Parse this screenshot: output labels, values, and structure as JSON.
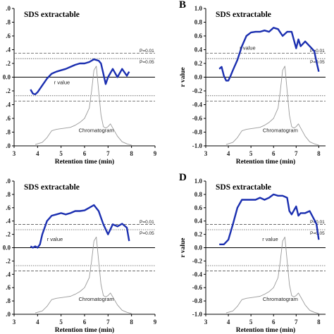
{
  "chart_data": [
    {
      "type": "line",
      "panel_label": "",
      "title": "SDS extractable",
      "xlabel": "Retention time (min)",
      "ylabel": "",
      "xlim": [
        3,
        9
      ],
      "ylim": [
        -1.0,
        1.0
      ],
      "xticks": [
        "3",
        "4",
        "5",
        "6",
        "7",
        "8",
        "9"
      ],
      "yticks": [
        ".0",
        ".8",
        ".6",
        ".4",
        ".2",
        "0.0",
        ".2",
        ".4",
        ".6",
        ".8",
        ".0"
      ],
      "ytick_values": [
        1.0,
        0.8,
        0.6,
        0.4,
        0.2,
        0.0,
        -0.2,
        -0.4,
        -0.6,
        -0.8,
        -1.0
      ],
      "thresholds": [
        {
          "label": "P=0.01",
          "value": 0.35
        },
        {
          "label": "P=0.05",
          "value": 0.27
        }
      ],
      "annotations": {
        "r_value": "r value",
        "chromatogram": "Chromatogram"
      },
      "r_label_pos": [
        4.7,
        -0.1
      ],
      "chrom_label_pos": [
        6.5,
        -0.8
      ],
      "series": [
        {
          "name": "r value",
          "color": "#1b2fb0",
          "x": [
            3.7,
            3.8,
            3.9,
            4.0,
            4.2,
            4.4,
            4.6,
            4.8,
            5.0,
            5.2,
            5.4,
            5.6,
            5.8,
            6.0,
            6.2,
            6.4,
            6.6,
            6.7,
            6.8,
            6.9,
            7.0,
            7.2,
            7.4,
            7.6,
            7.8,
            7.9
          ],
          "y": [
            -0.18,
            -0.24,
            -0.25,
            -0.22,
            -0.12,
            -0.02,
            0.05,
            0.08,
            0.1,
            0.12,
            0.15,
            0.18,
            0.2,
            0.2,
            0.22,
            0.26,
            0.24,
            0.2,
            0.05,
            -0.1,
            0.0,
            0.12,
            0.0,
            0.12,
            0.02,
            0.08
          ]
        },
        {
          "name": "Chromatogram",
          "color": "#999999",
          "x": [
            3.9,
            4.0,
            4.2,
            4.4,
            4.6,
            4.8,
            5.0,
            5.2,
            5.4,
            5.6,
            5.8,
            6.0,
            6.2,
            6.3,
            6.4,
            6.5,
            6.6,
            6.7,
            6.8,
            6.9,
            7.0,
            7.1,
            7.2,
            7.4,
            7.6,
            7.8,
            8.0
          ],
          "y": [
            -0.98,
            -0.97,
            -0.95,
            -0.88,
            -0.78,
            -0.76,
            -0.75,
            -0.74,
            -0.73,
            -0.7,
            -0.66,
            -0.6,
            -0.45,
            -0.2,
            0.1,
            0.16,
            -0.2,
            -0.55,
            -0.72,
            -0.74,
            -0.72,
            -0.68,
            -0.74,
            -0.86,
            -0.94,
            -0.97,
            -0.99
          ]
        }
      ]
    },
    {
      "type": "line",
      "panel_label": "B",
      "title": "SDS extractable",
      "xlabel": "Retention time (min)",
      "ylabel": "r value",
      "xlim": [
        3,
        8.3
      ],
      "ylim": [
        -1.0,
        1.0
      ],
      "xticks": [
        "3",
        "4",
        "5",
        "6",
        "7",
        "8"
      ],
      "yticks": [
        "1.0",
        "0.8",
        "0.6",
        "0.4",
        "0.2",
        "0.0",
        "-0.2",
        "-0.4",
        "-0.6",
        "-0.8",
        "-1.0"
      ],
      "ytick_values": [
        1.0,
        0.8,
        0.6,
        0.4,
        0.2,
        0.0,
        -0.2,
        -0.4,
        -0.6,
        -0.8,
        -1.0
      ],
      "thresholds": [
        {
          "label": "P=0.01",
          "value": 0.35
        },
        {
          "label": "P=0.05",
          "value": 0.27
        }
      ],
      "annotations": {
        "r_value": "r value",
        "chromatogram": "Chromatogram"
      },
      "r_label_pos": [
        4.5,
        0.4
      ],
      "chrom_label_pos": [
        6.3,
        -0.8
      ],
      "series": [
        {
          "name": "r value",
          "color": "#1b2fb0",
          "x": [
            3.6,
            3.7,
            3.8,
            3.9,
            4.0,
            4.1,
            4.2,
            4.4,
            4.6,
            4.8,
            5.0,
            5.2,
            5.4,
            5.6,
            5.8,
            6.0,
            6.2,
            6.4,
            6.6,
            6.8,
            7.0,
            7.1,
            7.2,
            7.4,
            7.6,
            7.8,
            7.9,
            8.0
          ],
          "y": [
            0.12,
            0.15,
            0.02,
            -0.05,
            -0.05,
            0.02,
            0.1,
            0.25,
            0.45,
            0.6,
            0.65,
            0.66,
            0.66,
            0.68,
            0.66,
            0.72,
            0.7,
            0.6,
            0.66,
            0.66,
            0.42,
            0.55,
            0.45,
            0.52,
            0.45,
            0.38,
            0.22,
            0.08
          ]
        },
        {
          "name": "Chromatogram",
          "color": "#999999",
          "x": [
            3.9,
            4.0,
            4.2,
            4.4,
            4.6,
            4.8,
            5.0,
            5.2,
            5.4,
            5.6,
            5.8,
            6.0,
            6.2,
            6.3,
            6.4,
            6.5,
            6.6,
            6.7,
            6.8,
            6.9,
            7.0,
            7.1,
            7.2,
            7.4,
            7.6,
            7.8,
            8.0
          ],
          "y": [
            -0.98,
            -0.97,
            -0.95,
            -0.88,
            -0.78,
            -0.76,
            -0.75,
            -0.74,
            -0.73,
            -0.7,
            -0.66,
            -0.6,
            -0.45,
            -0.2,
            0.1,
            0.16,
            -0.2,
            -0.55,
            -0.72,
            -0.74,
            -0.72,
            -0.68,
            -0.74,
            -0.86,
            -0.94,
            -0.97,
            -0.99
          ]
        }
      ]
    },
    {
      "type": "line",
      "panel_label": "",
      "title": "SDS extractable",
      "xlabel": "Retention time (min)",
      "ylabel": "",
      "xlim": [
        3,
        9
      ],
      "ylim": [
        -1.0,
        1.0
      ],
      "xticks": [
        "3",
        "4",
        "5",
        "6",
        "7",
        "8",
        "9"
      ],
      "yticks": [
        ".0",
        ".8",
        ".6",
        ".4",
        ".2",
        "0.0",
        ".2",
        ".4",
        ".6",
        ".8",
        ".0"
      ],
      "ytick_values": [
        1.0,
        0.8,
        0.6,
        0.4,
        0.2,
        0.0,
        -0.2,
        -0.4,
        -0.6,
        -0.8,
        -1.0
      ],
      "thresholds": [
        {
          "label": "P=0.01",
          "value": 0.35
        },
        {
          "label": "P=0.05",
          "value": 0.27
        }
      ],
      "annotations": {
        "r_value": "r value",
        "chromatogram": "Chromatogram"
      },
      "r_label_pos": [
        4.4,
        0.1
      ],
      "chrom_label_pos": [
        6.5,
        -0.8
      ],
      "series": [
        {
          "name": "r value",
          "color": "#1b2fb0",
          "x": [
            3.7,
            3.8,
            3.9,
            4.0,
            4.1,
            4.2,
            4.4,
            4.6,
            4.8,
            5.0,
            5.2,
            5.4,
            5.6,
            5.8,
            6.0,
            6.2,
            6.4,
            6.6,
            6.8,
            7.0,
            7.2,
            7.4,
            7.6,
            7.8,
            7.9
          ],
          "y": [
            0.02,
            0.0,
            0.02,
            0.0,
            0.05,
            0.2,
            0.4,
            0.48,
            0.5,
            0.52,
            0.5,
            0.52,
            0.55,
            0.55,
            0.56,
            0.6,
            0.64,
            0.55,
            0.35,
            0.2,
            0.35,
            0.32,
            0.36,
            0.3,
            0.1
          ]
        },
        {
          "name": "Chromatogram",
          "color": "#999999",
          "x": [
            3.9,
            4.0,
            4.2,
            4.4,
            4.6,
            4.8,
            5.0,
            5.2,
            5.4,
            5.6,
            5.8,
            6.0,
            6.2,
            6.3,
            6.4,
            6.5,
            6.6,
            6.7,
            6.8,
            6.9,
            7.0,
            7.1,
            7.2,
            7.4,
            7.6,
            7.8,
            8.0
          ],
          "y": [
            -0.98,
            -0.97,
            -0.95,
            -0.88,
            -0.78,
            -0.76,
            -0.75,
            -0.74,
            -0.73,
            -0.7,
            -0.66,
            -0.6,
            -0.45,
            -0.2,
            0.1,
            0.16,
            -0.2,
            -0.55,
            -0.72,
            -0.74,
            -0.72,
            -0.68,
            -0.74,
            -0.86,
            -0.94,
            -0.97,
            -0.99
          ]
        }
      ]
    },
    {
      "type": "line",
      "panel_label": "D",
      "title": "SDS extractable",
      "xlabel": "Retention time (min)",
      "ylabel": "r value",
      "xlim": [
        3,
        8.3
      ],
      "ylim": [
        -1.0,
        1.0
      ],
      "xticks": [
        "3",
        "4",
        "5",
        "6",
        "7",
        "8"
      ],
      "yticks": [
        "1.0",
        "0.8",
        "0.6",
        "0.4",
        "0.2",
        "0.0",
        "-0.2",
        "-0.4",
        "-0.6",
        "-0.8",
        "-1.0"
      ],
      "ytick_values": [
        1.0,
        0.8,
        0.6,
        0.4,
        0.2,
        0.0,
        -0.2,
        -0.4,
        -0.6,
        -0.8,
        -1.0
      ],
      "thresholds": [
        {
          "label": "P=0.01",
          "value": 0.35
        },
        {
          "label": "P=0.05",
          "value": 0.27
        }
      ],
      "annotations": {
        "r_value": "r value",
        "chromatogram": "Chromatogram"
      },
      "r_label_pos": [
        5.5,
        0.1
      ],
      "chrom_label_pos": [
        6.3,
        -0.8
      ],
      "series": [
        {
          "name": "r value",
          "color": "#1b2fb0",
          "x": [
            3.6,
            3.8,
            4.0,
            4.2,
            4.4,
            4.6,
            4.8,
            5.0,
            5.2,
            5.4,
            5.6,
            5.8,
            6.0,
            6.2,
            6.4,
            6.6,
            6.7,
            6.8,
            7.0,
            7.1,
            7.2,
            7.4,
            7.6,
            7.8,
            7.9,
            8.0
          ],
          "y": [
            0.05,
            0.05,
            0.12,
            0.35,
            0.6,
            0.72,
            0.72,
            0.72,
            0.72,
            0.75,
            0.72,
            0.75,
            0.8,
            0.78,
            0.78,
            0.75,
            0.55,
            0.5,
            0.62,
            0.48,
            0.52,
            0.52,
            0.55,
            0.42,
            0.35,
            0.12
          ]
        },
        {
          "name": "Chromatogram",
          "color": "#999999",
          "x": [
            3.9,
            4.0,
            4.2,
            4.4,
            4.6,
            4.8,
            5.0,
            5.2,
            5.4,
            5.6,
            5.8,
            6.0,
            6.2,
            6.3,
            6.4,
            6.5,
            6.6,
            6.7,
            6.8,
            6.9,
            7.0,
            7.1,
            7.2,
            7.4,
            7.6,
            7.8,
            8.0
          ],
          "y": [
            -0.98,
            -0.97,
            -0.95,
            -0.88,
            -0.78,
            -0.76,
            -0.75,
            -0.74,
            -0.73,
            -0.7,
            -0.66,
            -0.6,
            -0.45,
            -0.2,
            0.1,
            0.16,
            -0.2,
            -0.55,
            -0.72,
            -0.74,
            -0.72,
            -0.68,
            -0.74,
            -0.86,
            -0.94,
            -0.97,
            -0.99
          ]
        }
      ]
    }
  ]
}
